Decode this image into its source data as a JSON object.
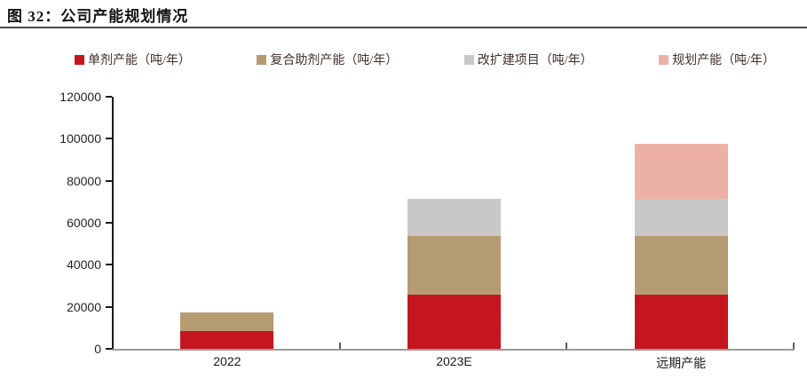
{
  "figure": {
    "title": "图 32：公司产能规划情况"
  },
  "chart_data": {
    "type": "bar",
    "stacked": true,
    "title": "公司产能规划情况",
    "categories": [
      "2022",
      "2023E",
      "远期产能"
    ],
    "series": [
      {
        "name": "单剂产能（吨/年）",
        "color": "#C5161D",
        "values": [
          8600,
          25600,
          25600
        ]
      },
      {
        "name": "复合助剂产能（吨/年）",
        "color": "#B59B71",
        "values": [
          8900,
          28000,
          28000
        ]
      },
      {
        "name": "改扩建项目（吨/年）",
        "color": "#C8C8C8",
        "values": [
          0,
          18000,
          18000
        ]
      },
      {
        "name": "规划产能（吨/年）",
        "color": "#EDB0A5",
        "values": [
          0,
          0,
          26000
        ]
      }
    ],
    "totals": [
      17500,
      71600,
      97600
    ],
    "xlabel": "",
    "ylabel": "",
    "ylim": [
      0,
      120000
    ],
    "yticks": [
      0,
      20000,
      40000,
      60000,
      80000,
      100000,
      120000
    ],
    "legend_position": "top",
    "grid": false,
    "colors": {
      "y_axis": "#1a1a1a",
      "x_axis": "#9a9a9a",
      "tick_label": "#23232d",
      "legend_text": "#40302b"
    }
  }
}
